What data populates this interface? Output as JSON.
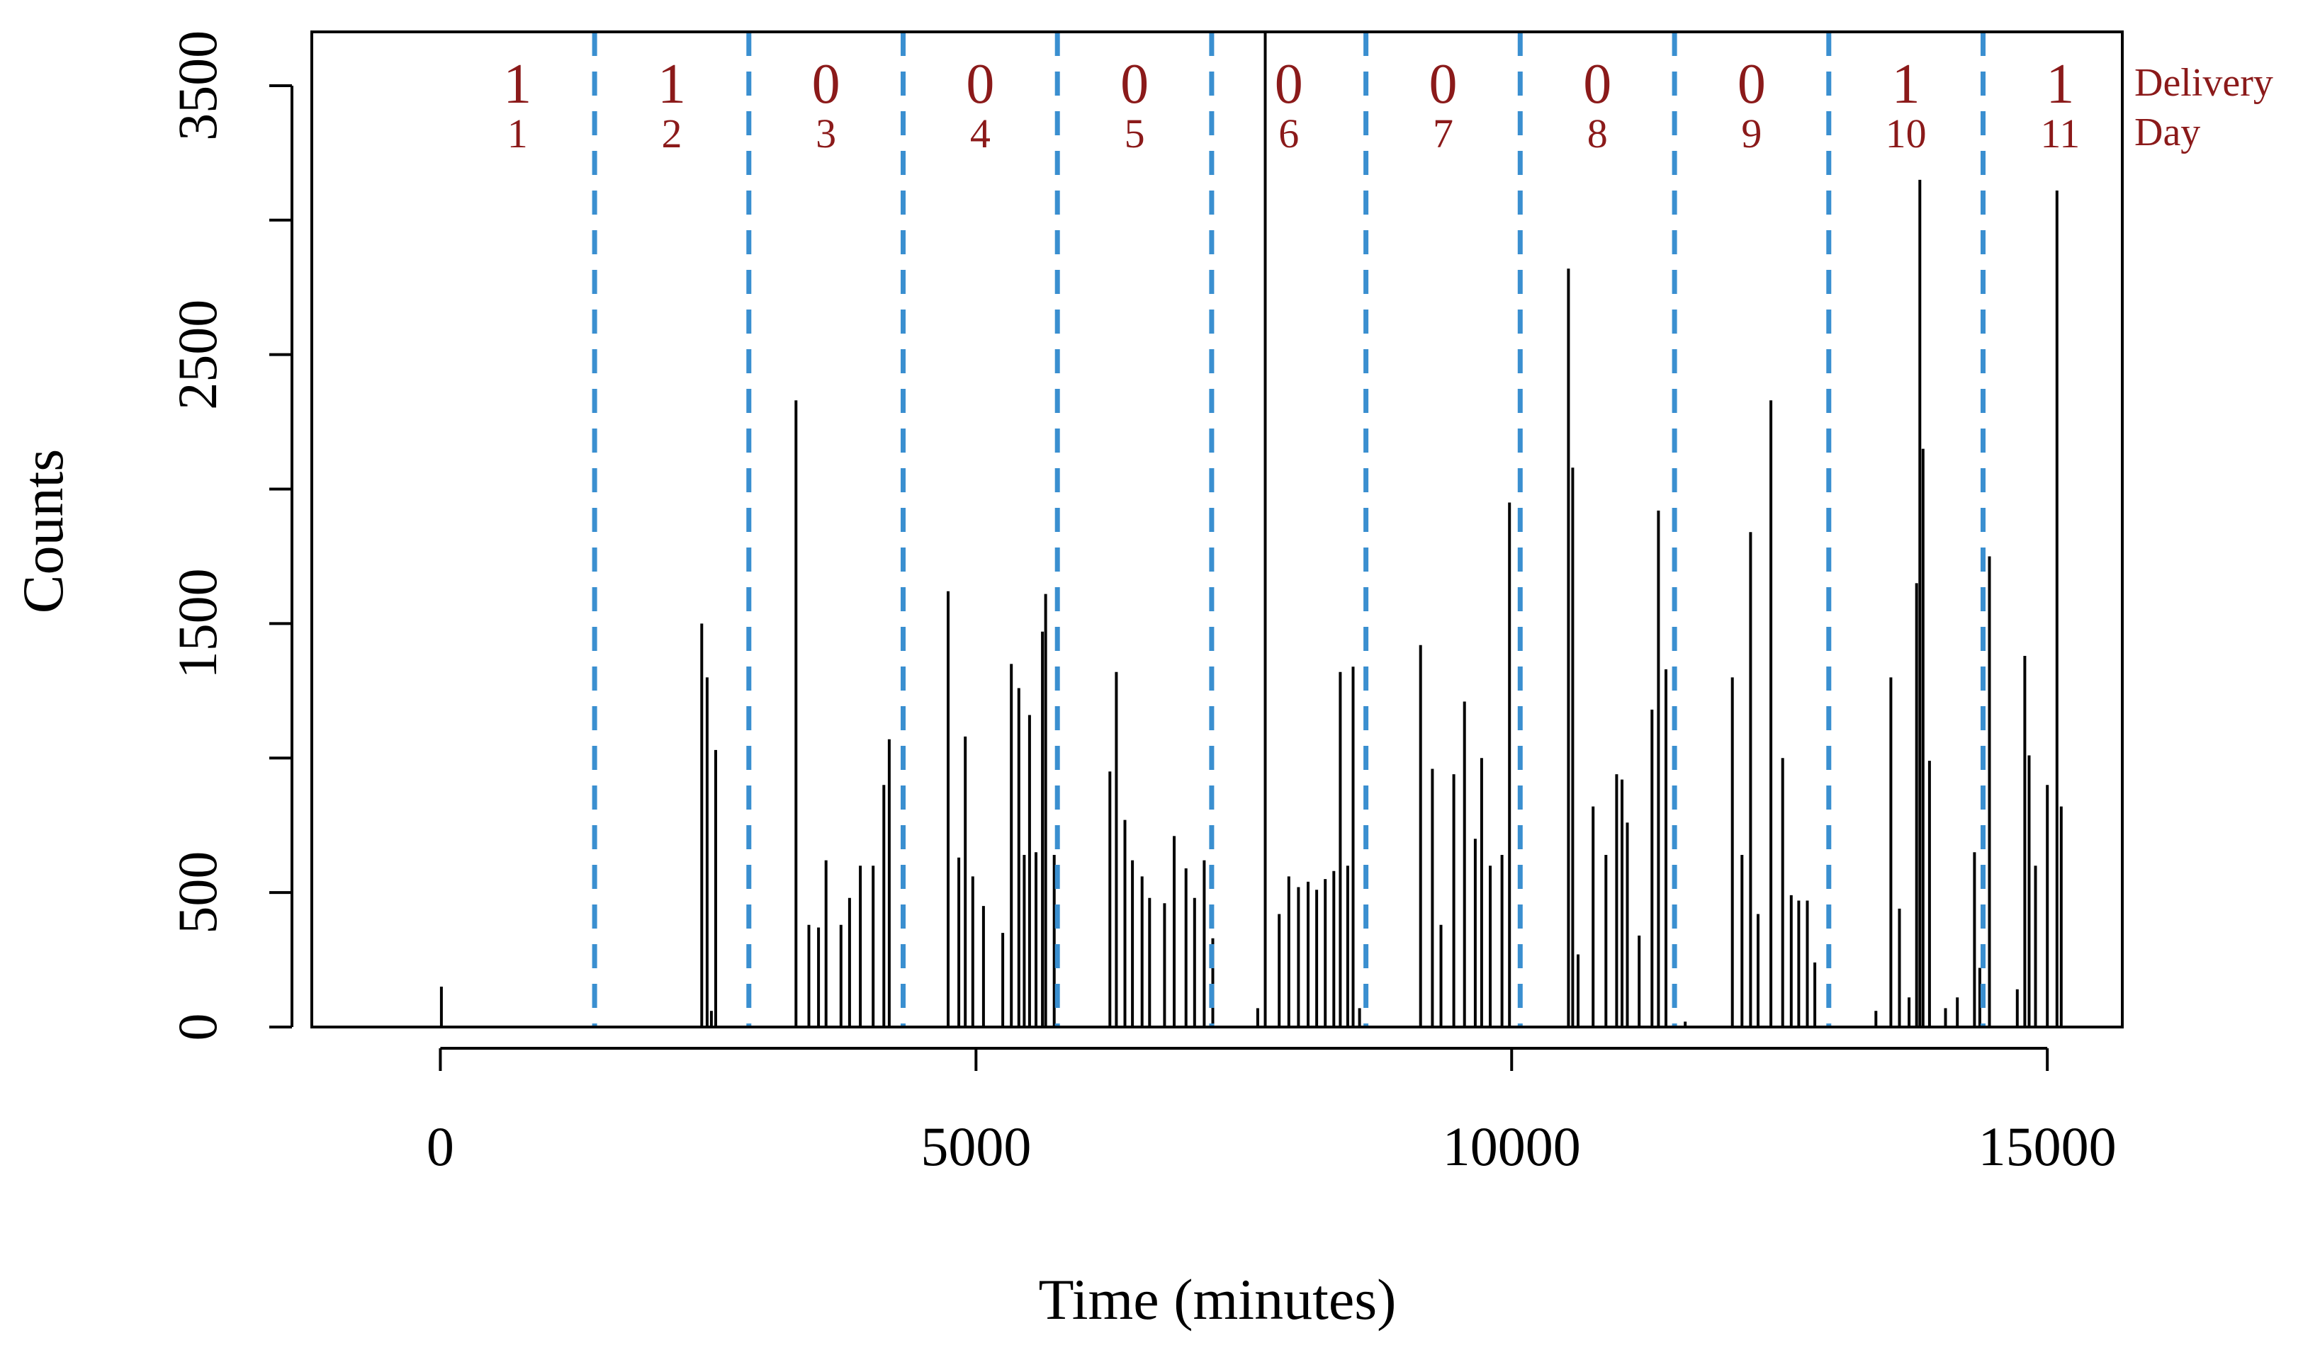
{
  "chart_data": {
    "type": "bar",
    "xlabel": "Time (minutes)",
    "ylabel": "Counts",
    "xlim": [
      -1200,
      15700
    ],
    "ylim": [
      0,
      3700
    ],
    "xticks": [
      "0",
      "5000",
      "10000",
      "15000"
    ],
    "xtick_values": [
      0,
      5000,
      10000,
      15000
    ],
    "yticks": [
      "0",
      "500",
      "1500",
      "2500",
      "3500"
    ],
    "ytick_values": [
      0,
      500,
      1500,
      2500,
      3500
    ],
    "grid": false,
    "bar_color": "#000000",
    "day_boundary_color": "#3a8fd0",
    "label_color": "#8b1a1a",
    "row_labels": {
      "delivery": "Delivery",
      "day": "Day"
    },
    "day_boundaries": [
      1440,
      2880,
      4320,
      5760,
      7200,
      8640,
      10080,
      11520,
      12960,
      14400
    ],
    "solid_line_x": 7700,
    "days": [
      {
        "day": "1",
        "delivery": "1",
        "center": 720
      },
      {
        "day": "2",
        "delivery": "1",
        "center": 2160
      },
      {
        "day": "3",
        "delivery": "0",
        "center": 3600
      },
      {
        "day": "4",
        "delivery": "0",
        "center": 5040
      },
      {
        "day": "5",
        "delivery": "0",
        "center": 6480
      },
      {
        "day": "6",
        "delivery": "0",
        "center": 7920
      },
      {
        "day": "7",
        "delivery": "0",
        "center": 9360
      },
      {
        "day": "8",
        "delivery": "0",
        "center": 10800
      },
      {
        "day": "9",
        "delivery": "0",
        "center": 12240
      },
      {
        "day": "10",
        "delivery": "1",
        "center": 13680
      },
      {
        "day": "11",
        "delivery": "1",
        "center": 15120
      }
    ],
    "peaks": [
      [
        10,
        150
      ],
      [
        2440,
        1500
      ],
      [
        2490,
        1300
      ],
      [
        2530,
        60
      ],
      [
        2570,
        1030
      ],
      [
        3320,
        2330
      ],
      [
        3440,
        380
      ],
      [
        3530,
        370
      ],
      [
        3600,
        620
      ],
      [
        3740,
        380
      ],
      [
        3820,
        480
      ],
      [
        3920,
        600
      ],
      [
        4040,
        600
      ],
      [
        4140,
        900
      ],
      [
        4190,
        1070
      ],
      [
        4740,
        1620
      ],
      [
        4840,
        630
      ],
      [
        4900,
        1080
      ],
      [
        4970,
        560
      ],
      [
        5070,
        450
      ],
      [
        5250,
        350
      ],
      [
        5330,
        1350
      ],
      [
        5400,
        1260
      ],
      [
        5450,
        640
      ],
      [
        5500,
        1160
      ],
      [
        5560,
        650
      ],
      [
        5620,
        1470
      ],
      [
        5650,
        1610
      ],
      [
        5730,
        640
      ],
      [
        6250,
        950
      ],
      [
        6310,
        1320
      ],
      [
        6390,
        770
      ],
      [
        6460,
        620
      ],
      [
        6550,
        560
      ],
      [
        6620,
        480
      ],
      [
        6760,
        460
      ],
      [
        6850,
        710
      ],
      [
        6960,
        590
      ],
      [
        7040,
        480
      ],
      [
        7130,
        620
      ],
      [
        7210,
        330
      ],
      [
        7630,
        70
      ],
      [
        7830,
        420
      ],
      [
        7920,
        560
      ],
      [
        8010,
        520
      ],
      [
        8100,
        540
      ],
      [
        8180,
        510
      ],
      [
        8260,
        550
      ],
      [
        8340,
        580
      ],
      [
        8400,
        1320
      ],
      [
        8470,
        600
      ],
      [
        8520,
        1340
      ],
      [
        8580,
        70
      ],
      [
        9150,
        1420
      ],
      [
        9260,
        960
      ],
      [
        9340,
        380
      ],
      [
        9460,
        940
      ],
      [
        9560,
        1210
      ],
      [
        9660,
        700
      ],
      [
        9720,
        1000
      ],
      [
        9800,
        600
      ],
      [
        9910,
        640
      ],
      [
        9980,
        1950
      ],
      [
        10530,
        2820
      ],
      [
        10570,
        2080
      ],
      [
        10620,
        270
      ],
      [
        10760,
        820
      ],
      [
        10880,
        640
      ],
      [
        10980,
        940
      ],
      [
        11030,
        920
      ],
      [
        11080,
        760
      ],
      [
        11190,
        340
      ],
      [
        11310,
        1180
      ],
      [
        11370,
        1920
      ],
      [
        11440,
        1330
      ],
      [
        11620,
        20
      ],
      [
        12060,
        1300
      ],
      [
        12150,
        640
      ],
      [
        12230,
        1840
      ],
      [
        12300,
        420
      ],
      [
        12420,
        2330
      ],
      [
        12530,
        1000
      ],
      [
        12610,
        490
      ],
      [
        12680,
        470
      ],
      [
        12760,
        470
      ],
      [
        12830,
        240
      ],
      [
        13400,
        60
      ],
      [
        13540,
        1300
      ],
      [
        13620,
        440
      ],
      [
        13710,
        110
      ],
      [
        13780,
        1650
      ],
      [
        13810,
        3150
      ],
      [
        13840,
        2150
      ],
      [
        13900,
        990
      ],
      [
        14050,
        70
      ],
      [
        14160,
        110
      ],
      [
        14320,
        650
      ],
      [
        14370,
        220
      ],
      [
        14460,
        1750
      ],
      [
        14720,
        140
      ],
      [
        14790,
        1380
      ],
      [
        14830,
        1010
      ],
      [
        14890,
        600
      ],
      [
        15000,
        900
      ],
      [
        15090,
        3110
      ],
      [
        15130,
        820
      ]
    ]
  }
}
